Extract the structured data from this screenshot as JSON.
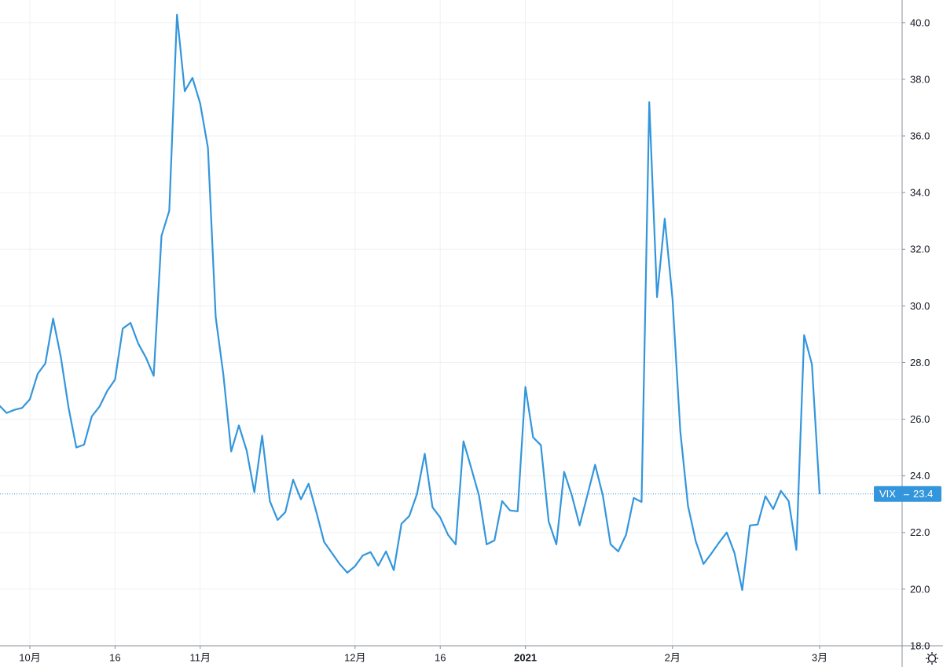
{
  "chart_data": {
    "type": "line",
    "categories": [
      null,
      null,
      null,
      null,
      "10月",
      null,
      null,
      null,
      null,
      null,
      null,
      null,
      null,
      null,
      null,
      "16",
      null,
      null,
      null,
      null,
      null,
      null,
      null,
      null,
      null,
      null,
      "11月",
      null,
      null,
      null,
      null,
      null,
      null,
      null,
      null,
      null,
      null,
      null,
      null,
      null,
      null,
      null,
      null,
      null,
      null,
      null,
      "12月",
      null,
      null,
      null,
      null,
      null,
      null,
      null,
      null,
      null,
      null,
      "16",
      null,
      null,
      null,
      null,
      null,
      null,
      null,
      null,
      null,
      null,
      "2021",
      null,
      null,
      null,
      null,
      null,
      null,
      null,
      null,
      null,
      null,
      null,
      null,
      null,
      null,
      null,
      null,
      null,
      null,
      "2月",
      null,
      null,
      null,
      null,
      null,
      null,
      null,
      null,
      null,
      null,
      null,
      null,
      null,
      null,
      null,
      null,
      null,
      null,
      "3月"
    ],
    "series": [
      {
        "name": "VIX",
        "color": "#3396dc",
        "values": [
          26.5,
          26.22,
          26.33,
          26.4,
          26.7,
          27.6,
          27.97,
          29.55,
          28.2,
          26.4,
          25.0,
          25.1,
          26.1,
          26.45,
          27.0,
          27.4,
          29.2,
          29.4,
          28.67,
          28.17,
          27.53,
          32.47,
          33.36,
          40.28,
          37.58,
          38.05,
          37.14,
          35.58,
          29.6,
          27.56,
          24.86,
          25.78,
          24.89,
          23.42,
          25.42,
          23.11,
          22.44,
          22.72,
          23.86,
          23.17,
          23.72,
          22.72,
          21.67,
          21.28,
          20.89,
          20.58,
          20.81,
          21.19,
          21.31,
          20.83,
          21.33,
          20.67,
          22.31,
          22.58,
          23.36,
          24.78,
          22.89,
          22.53,
          21.92,
          21.58,
          25.22,
          24.28,
          23.31,
          21.58,
          21.72,
          23.11,
          22.78,
          22.75,
          27.14,
          25.36,
          25.08,
          22.39,
          21.58,
          24.14,
          23.31,
          22.25,
          23.31,
          24.39,
          23.31,
          21.58,
          21.33,
          21.92,
          23.22,
          23.08,
          37.19,
          30.31,
          33.08,
          30.25,
          25.58,
          22.94,
          21.69,
          20.89,
          21.25,
          21.64,
          22.0,
          21.28,
          19.97,
          22.25,
          22.28,
          23.28,
          22.83,
          23.47,
          23.11,
          21.39,
          28.97,
          27.94,
          23.36
        ],
        "value_labels": [
          null,
          null,
          null,
          null,
          null,
          null,
          null,
          null,
          null,
          null,
          null,
          null,
          null,
          null,
          null,
          null,
          null,
          null,
          null,
          null,
          null,
          null,
          null,
          null,
          null,
          null,
          null,
          null,
          null,
          null,
          null,
          null,
          null,
          null,
          null,
          null,
          null,
          null,
          null,
          null,
          null,
          null,
          null,
          null,
          null,
          null,
          null,
          null,
          null,
          null,
          null,
          null,
          null,
          null,
          null,
          null,
          null,
          null,
          null,
          null,
          null,
          null,
          null,
          null,
          null,
          null,
          null,
          null,
          null,
          null,
          null,
          null,
          null,
          null,
          null,
          null,
          null,
          null,
          null,
          null,
          null,
          null,
          null,
          null,
          null,
          null,
          null,
          null,
          null,
          null,
          null,
          null,
          null,
          null,
          null,
          null,
          null,
          null,
          null,
          null,
          null,
          null,
          null,
          null,
          null,
          null,
          "23.4"
        ]
      }
    ],
    "ylim": [
      18,
      40.8
    ],
    "yticks": [
      {
        "value": 18,
        "label": "18.0"
      },
      {
        "value": 20,
        "label": "20.0"
      },
      {
        "value": 22,
        "label": "22.0"
      },
      {
        "value": 24,
        "label": "24.0"
      },
      {
        "value": 26,
        "label": "26.0"
      },
      {
        "value": 28,
        "label": "28.0"
      },
      {
        "value": 30,
        "label": "30.0"
      },
      {
        "value": 32,
        "label": "32.0"
      },
      {
        "value": 34,
        "label": "34.0"
      },
      {
        "value": 36,
        "label": "36.0"
      },
      {
        "value": 38,
        "label": "38.0"
      },
      {
        "value": 40,
        "label": "40.0"
      }
    ],
    "grid": true
  }
}
